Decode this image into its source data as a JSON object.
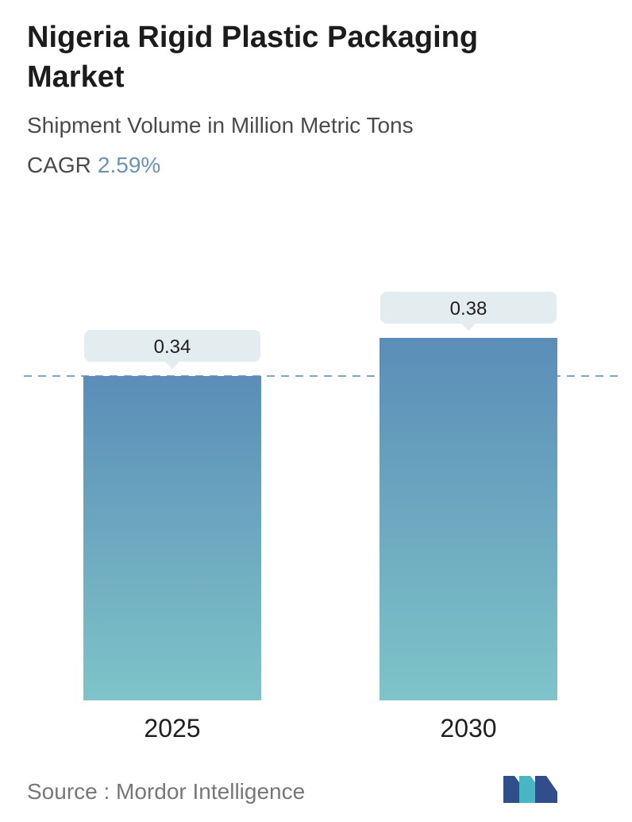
{
  "header": {
    "title": "Nigeria Rigid Plastic Packaging Market",
    "subtitle": "Shipment Volume in Million Metric Tons",
    "cagr_label": "CAGR",
    "cagr_value": "2.59%"
  },
  "chart_data": {
    "type": "bar",
    "categories": [
      "2025",
      "2030"
    ],
    "values": [
      0.34,
      0.38
    ],
    "value_labels": [
      "0.34",
      "0.38"
    ],
    "title": "Nigeria Rigid Plastic Packaging Market",
    "subtitle": "Shipment Volume in Million Metric Tons",
    "reference_line": 0.34,
    "grid": false,
    "colors": {
      "bar_top": "#5b8db8",
      "bar_bottom": "#7ec4c8",
      "label_box": "#e3ecee",
      "reference_line": "#5b8aa6"
    }
  },
  "footer": {
    "source": "Source :  Mordor Intelligence"
  },
  "logo": {
    "icon": "mordor-intelligence-logo-icon",
    "colors": [
      "#2f4e8a",
      "#48b6c3"
    ]
  }
}
